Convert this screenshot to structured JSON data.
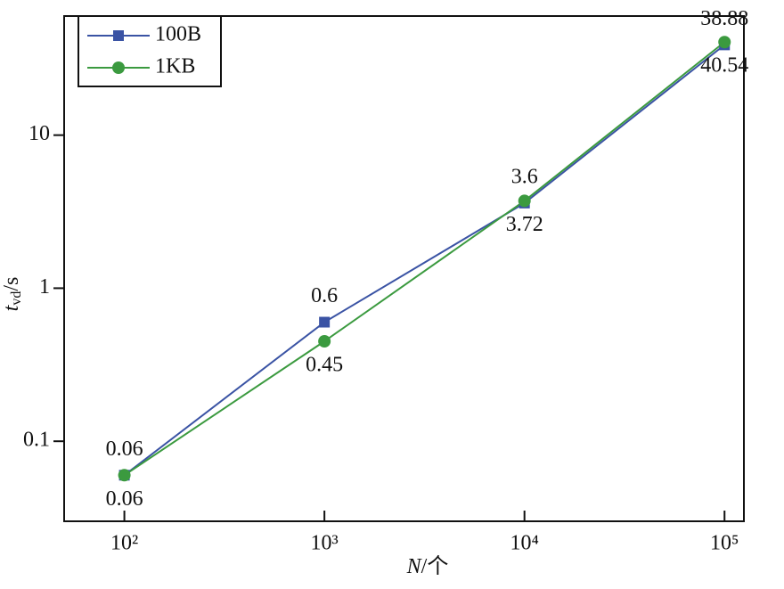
{
  "chart_data": {
    "type": "line",
    "xlabel": {
      "main": "N",
      "rest": "/个"
    },
    "ylabel": {
      "main": "t",
      "sub": "vd",
      "rest": "/s"
    },
    "x": [
      100,
      1000,
      10000,
      100000
    ],
    "series": [
      {
        "name": "100B",
        "color": "#3a53a4",
        "marker": "square",
        "values": [
          0.06,
          0.6,
          3.6,
          38.88
        ]
      },
      {
        "name": "1KB",
        "color": "#3b9a3f",
        "marker": "circle",
        "values": [
          0.06,
          0.45,
          3.72,
          40.54
        ]
      }
    ],
    "xscale": "log",
    "yscale": "log",
    "xlim": [
      50,
      125000
    ],
    "ylim": [
      0.03,
      60
    ],
    "xticks": [
      {
        "value": 100,
        "label": "10²"
      },
      {
        "value": 1000,
        "label": "10³"
      },
      {
        "value": 10000,
        "label": "10⁴"
      },
      {
        "value": 100000,
        "label": "10⁵"
      }
    ],
    "yticks": [
      0.1,
      1,
      10
    ],
    "legend": "upper left"
  }
}
